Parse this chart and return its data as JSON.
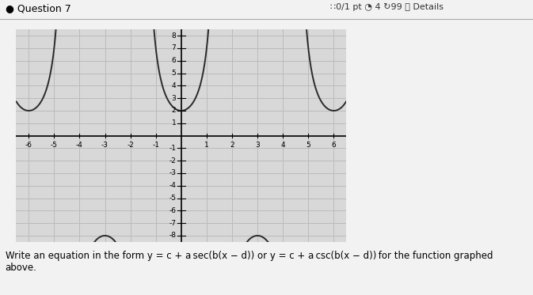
{
  "c": -3,
  "a": 5,
  "b": 1.0471975511965976,
  "d": 0,
  "xlim": [
    -6.5,
    6.5
  ],
  "ylim": [
    -8.5,
    8.5
  ],
  "xticks": [
    -6,
    -5,
    -4,
    -3,
    -2,
    -1,
    1,
    2,
    3,
    4,
    5,
    6
  ],
  "yticks": [
    -8,
    -7,
    -6,
    -5,
    -4,
    -3,
    -2,
    -1,
    1,
    2,
    3,
    4,
    5,
    6,
    7,
    8
  ],
  "asymptotes": [
    -4.5,
    -1.5,
    1.5,
    4.5
  ],
  "curve_color": "#2a2a2a",
  "bg_color": "#d8d8d8",
  "grid_color": "#bbbbbb",
  "axis_color": "#000000",
  "figsize": [
    6.73,
    3.73
  ],
  "dpi": 100,
  "question_text": "● Question 7",
  "details_text": "∷0/1 pt ◔ 4 ↻99 ⓘ Details",
  "bottom_text": "Write an equation in the form y = c + a sec(b(x − d)) or y = c + a csc(b(x − d)) for the function graphed\nabove."
}
